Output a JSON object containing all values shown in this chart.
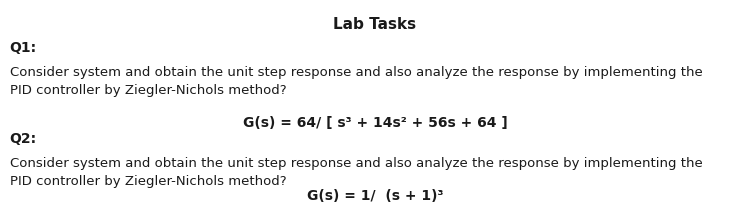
{
  "title": "Lab Tasks",
  "title_fontsize": 11,
  "title_fontweight": "bold",
  "background_color": "#ffffff",
  "text_color": "#1a1a1a",
  "q1_label": "Q1:",
  "q1_body": "Consider system and obtain the unit step response and also analyze the response by implementing the\nPID controller by Ziegler-Nichols method?",
  "q1_formula": "G(s) = 64/ [ s³ + 14s² + 56s + 64 ]",
  "q2_label": "Q2:",
  "q2_body": "Consider system and obtain the unit step response and also analyze the response by implementing the\nPID controller by Ziegler-Nichols method?",
  "q2_formula": "G(s) = 1/  (s + 1)³",
  "body_fontsize": 9.5,
  "label_fontsize": 10,
  "formula_fontsize": 10,
  "font_family": "DejaVu Sans"
}
